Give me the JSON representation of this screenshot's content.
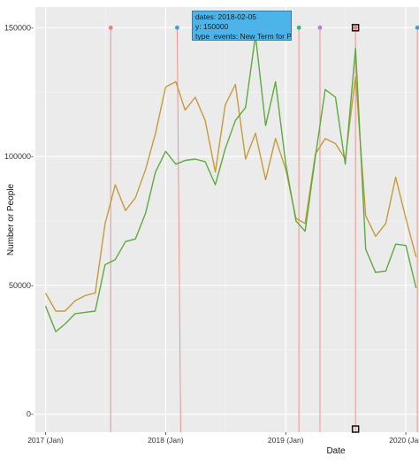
{
  "chart_data": {
    "type": "line",
    "xlabel": "Date",
    "ylabel": "Number or People",
    "ylim": [
      -7000,
      158000
    ],
    "xlim": [
      "2016-12-01",
      "2020-02-10"
    ],
    "grid": true,
    "background": "#ebebeb",
    "x_ticks": [
      {
        "date": "2017-01-01",
        "label": "2017 (Jan)"
      },
      {
        "date": "2018-01-01",
        "label": "2018 (Jan)"
      },
      {
        "date": "2019-01-01",
        "label": "2019 (Jan)"
      },
      {
        "date": "2020-01-01",
        "label": "2020 (Jan"
      }
    ],
    "y_ticks": [
      {
        "value": 0,
        "label": "0-"
      },
      {
        "value": 50000,
        "label": "50000-"
      },
      {
        "value": 100000,
        "label": "100000-"
      },
      {
        "value": 150000,
        "label": "150000-"
      }
    ],
    "x": [
      "2017-01-01",
      "2017-02-01",
      "2017-03-01",
      "2017-04-01",
      "2017-05-01",
      "2017-06-01",
      "2017-07-01",
      "2017-08-01",
      "2017-09-01",
      "2017-10-01",
      "2017-11-01",
      "2017-12-01",
      "2018-01-01",
      "2018-02-01",
      "2018-03-01",
      "2018-04-01",
      "2018-05-01",
      "2018-06-01",
      "2018-07-01",
      "2018-08-01",
      "2018-09-01",
      "2018-10-01",
      "2018-11-01",
      "2018-12-01",
      "2019-01-01",
      "2019-02-01",
      "2019-03-01",
      "2019-04-01",
      "2019-05-01",
      "2019-06-01",
      "2019-07-01",
      "2019-08-01",
      "2019-09-01",
      "2019-10-01",
      "2019-11-01",
      "2019-12-01",
      "2020-01-01",
      "2020-02-01"
    ],
    "series": [
      {
        "color": "#c89a3a",
        "values": [
          47000,
          40000,
          40000,
          44000,
          46000,
          47000,
          74000,
          89000,
          79000,
          84000,
          95000,
          109000,
          127000,
          129000,
          118000,
          123000,
          114000,
          94000,
          120000,
          128000,
          99000,
          109000,
          91000,
          107000,
          95000,
          76000,
          74000,
          101000,
          107000,
          105000,
          99000,
          131000,
          77000,
          69000,
          74000,
          92000,
          76000,
          61000
        ]
      },
      {
        "color": "#5dab3c",
        "values": [
          42000,
          32000,
          35000,
          39000,
          39500,
          40000,
          58000,
          60000,
          67000,
          68000,
          78000,
          94000,
          102000,
          97000,
          98500,
          99000,
          98000,
          89000,
          103000,
          114000,
          119000,
          147000,
          112000,
          129000,
          97000,
          75000,
          71000,
          100000,
          126000,
          123000,
          97000,
          142000,
          64000,
          55000,
          55500,
          66000,
          65500,
          49000
        ]
      }
    ],
    "events": [
      {
        "date": "2017-07-18",
        "color": "#f2807a"
      },
      {
        "date": "2018-02-05",
        "color": "#3fa0e0"
      },
      {
        "date": "2019-02-10",
        "color": "#2bb58a"
      },
      {
        "date": "2019-04-15",
        "color": "#b77ddb"
      },
      {
        "date": "2019-08-01",
        "color": "#f2807a"
      },
      {
        "date": "2020-02-05",
        "color": "#3fa0e0"
      }
    ],
    "tooltip": {
      "dates": "dates: 2018-02-05",
      "y": "y: 150000",
      "type": "type_events: New Term for PEP"
    }
  }
}
